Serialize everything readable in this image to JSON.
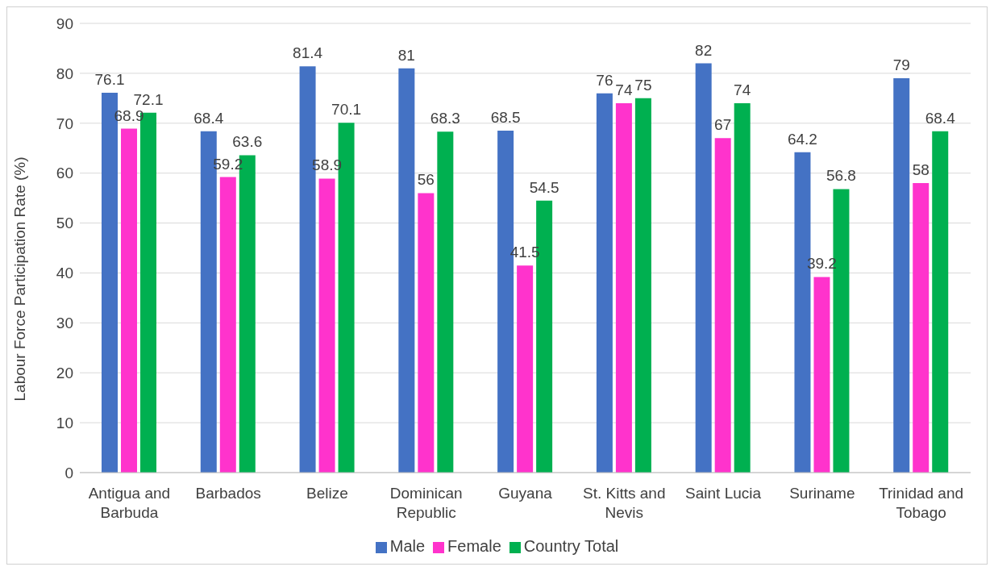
{
  "chart_data": {
    "type": "bar",
    "ylabel": "Labour Force Participation Rate (%)",
    "categories": [
      "Antigua and Barbuda",
      "Barbados",
      "Belize",
      "Dominican Republic",
      "Guyana",
      "St. Kitts and Nevis",
      "Saint Lucia",
      "Suriname",
      "Trinidad and Tobago"
    ],
    "series": [
      {
        "name": "Male",
        "color": "#4472c4",
        "values": [
          76.1,
          68.4,
          81.4,
          81,
          68.5,
          76,
          82,
          64.2,
          79
        ]
      },
      {
        "name": "Female",
        "color": "#ff33cc",
        "values": [
          68.9,
          59.2,
          58.9,
          56,
          41.5,
          74,
          67,
          39.2,
          58
        ]
      },
      {
        "name": "Country Total",
        "color": "#00b050",
        "values": [
          72.1,
          63.6,
          70.1,
          68.3,
          54.5,
          75,
          74,
          56.8,
          68.4
        ]
      }
    ],
    "ylim": [
      0,
      90
    ],
    "yticks": [
      0,
      10,
      20,
      30,
      40,
      50,
      60,
      70,
      80,
      90
    ],
    "grid": "y",
    "legend": "bottom",
    "data_labels": true
  }
}
